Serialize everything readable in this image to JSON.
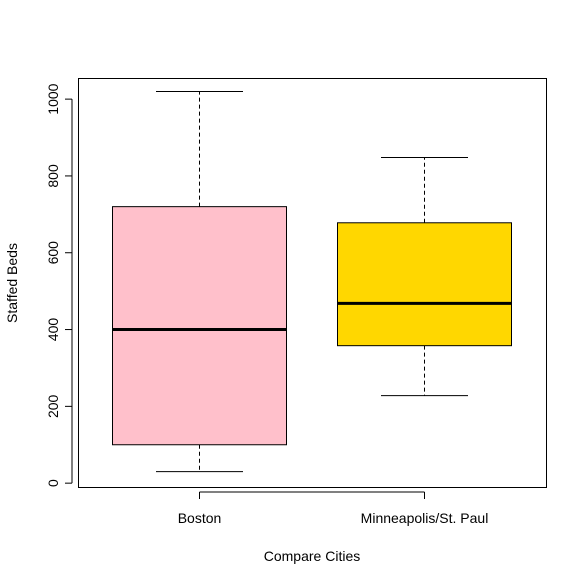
{
  "chart_data": {
    "type": "boxplot",
    "title": "",
    "xlabel": "Compare Cities",
    "ylabel": "Staffed Beds",
    "ylim": [
      -10,
      1055
    ],
    "yticks": [
      0,
      200,
      400,
      600,
      800,
      1000
    ],
    "ytick_labels": [
      "0",
      "200",
      "400",
      "600",
      "800",
      "1000"
    ],
    "categories": [
      "Boston",
      "Minneapolis/St. Paul"
    ],
    "boxes": [
      {
        "category": "Boston",
        "min": 30,
        "q1": 100,
        "median": 400,
        "q3": 720,
        "max": 1020,
        "color": "#FFC0CB"
      },
      {
        "category": "Minneapolis/St. Paul",
        "min": 228,
        "q1": 358,
        "median": 468,
        "q3": 678,
        "max": 848,
        "color": "#FFD700"
      }
    ]
  }
}
